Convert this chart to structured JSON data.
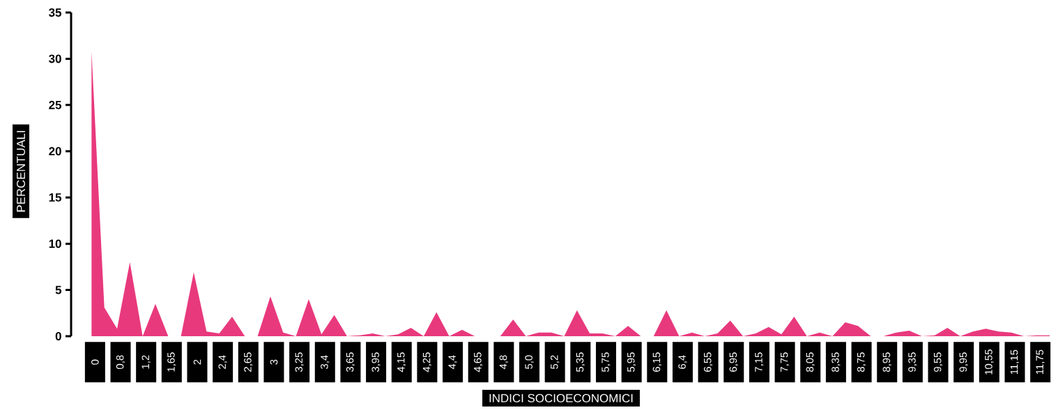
{
  "chart_data": {
    "type": "area",
    "xlabel": "INDICI SOCIOECONOMICI",
    "ylabel": "PERCENTUALI",
    "categories": [
      "0",
      null,
      "0,8",
      null,
      "1,2",
      null,
      "1,65",
      null,
      "2",
      null,
      "2,4",
      null,
      "2,65",
      null,
      "3",
      null,
      "3,25",
      null,
      "3,4",
      null,
      "3,65",
      null,
      "3,95",
      null,
      "4,15",
      null,
      "4,25",
      null,
      "4,4",
      null,
      "4,65",
      null,
      "4,8",
      null,
      "5,0",
      null,
      "5,2",
      null,
      "5,35",
      null,
      "5,75",
      null,
      "5,95",
      null,
      "6,15",
      null,
      "6,4",
      null,
      "6,55",
      null,
      "6,95",
      null,
      "7,15",
      null,
      "7,75",
      null,
      "8,05",
      null,
      "8,35",
      null,
      "8,75",
      null,
      "8,95",
      null,
      "9,35",
      null,
      "9,55",
      null,
      "9,95",
      null,
      "10,55",
      null,
      "11,15",
      null,
      "11,75",
      null
    ],
    "values": [
      30.8,
      3.1,
      0.8,
      8.0,
      0,
      3.5,
      0,
      0,
      6.9,
      0.5,
      0.3,
      2.1,
      0,
      0,
      4.3,
      0.4,
      0,
      4.0,
      0.2,
      2.3,
      0,
      0.1,
      0.3,
      0,
      0.2,
      0.9,
      0,
      2.6,
      0,
      0.7,
      0,
      0,
      0,
      1.8,
      0,
      0.4,
      0.4,
      0,
      2.8,
      0.3,
      0.3,
      0,
      1.1,
      0,
      0,
      2.8,
      0,
      0.4,
      0,
      0.3,
      1.7,
      0,
      0.3,
      1.0,
      0.2,
      2.1,
      0,
      0.4,
      0,
      1.5,
      1.1,
      0,
      0,
      0.4,
      0.6,
      0,
      0.1,
      0.9,
      0,
      0.5,
      0.8,
      0.5,
      0.4,
      0,
      0.1,
      0.1
    ],
    "color": "#e8397d",
    "ylim": [
      0,
      35
    ],
    "yticks": [
      0,
      5,
      10,
      15,
      20,
      25,
      30,
      35
    ]
  }
}
